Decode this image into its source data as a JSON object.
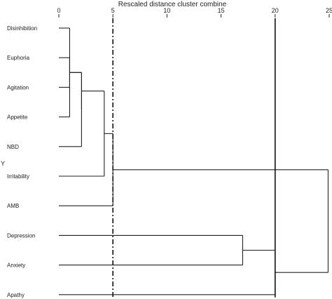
{
  "chart_data": {
    "type": "dendrogram",
    "title": "Rescaled distance cluster combine",
    "ylabel": "Y",
    "xlim": [
      0,
      25
    ],
    "ticks": [
      {
        "value": 0,
        "label": "0"
      },
      {
        "value": 5,
        "label": "5"
      },
      {
        "value": 10,
        "label": "10"
      },
      {
        "value": 15,
        "label": "15"
      },
      {
        "value": 20,
        "label": "20"
      },
      {
        "value": 25,
        "label": "25"
      }
    ],
    "leaves": [
      "Disinhibition",
      "Euphoria",
      "Agitation",
      "Appetite",
      "NBD",
      "Irritability",
      "AMB",
      "Depression",
      "Anxiety",
      "Apathy"
    ],
    "merges": [
      {
        "left": "Disinhibition",
        "right": "Appetite",
        "distance": 1.0
      },
      {
        "left": "Euphoria",
        "right": "Agitation",
        "distance": 1.0
      },
      {
        "left": 1,
        "right": "NBD",
        "distance": 2.1
      },
      {
        "left": 0,
        "right": 2,
        "distance": 2.1
      },
      {
        "left": 3,
        "right": "Irritability",
        "distance": 4.2
      },
      {
        "left": 4,
        "right": "AMB",
        "distance": 5.0
      },
      {
        "left": "Depression",
        "right": "Anxiety",
        "distance": 17.0
      },
      {
        "left": 6,
        "right": "Apathy",
        "distance": 20.0
      },
      {
        "left": 5,
        "right": 7,
        "distance": 24.9
      }
    ],
    "threshold_lines": [
      {
        "value": 5,
        "style": "dash-dot"
      },
      {
        "value": 20,
        "style": "solid"
      }
    ]
  }
}
